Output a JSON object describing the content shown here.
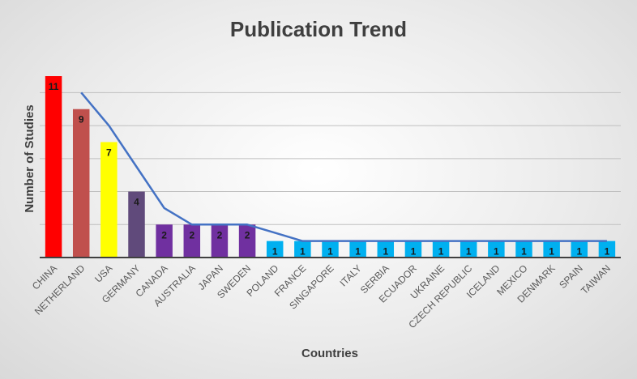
{
  "chart_data": {
    "type": "bar",
    "title": "Publication Trend",
    "xlabel": "Countries",
    "ylabel": "Number of Studies",
    "categories": [
      "CHINA",
      "NETHERLAND",
      "USA",
      "GERMANY",
      "CANADA",
      "AUSTRALIA",
      "JAPAN",
      "SWEDEN",
      "POLAND",
      "FRANCE",
      "SINGAPORE",
      "ITALY",
      "SERBIA",
      "ECUADOR",
      "UKRAINE",
      "CZECH REPUBLIC",
      "ICELAND",
      "MEXICO",
      "DENMARK",
      "SPAIN",
      "TAIWAN"
    ],
    "values": [
      11,
      9,
      7,
      4,
      2,
      2,
      2,
      2,
      1,
      1,
      1,
      1,
      1,
      1,
      1,
      1,
      1,
      1,
      1,
      1,
      1
    ],
    "bar_colors": [
      "#ff0000",
      "#c0504d",
      "#ffff00",
      "#604a7b",
      "#7030a0",
      "#7030a0",
      "#7030a0",
      "#7030a0",
      "#00b0f0",
      "#00b0f0",
      "#00b0f0",
      "#00b0f0",
      "#00b0f0",
      "#00b0f0",
      "#00b0f0",
      "#00b0f0",
      "#00b0f0",
      "#00b0f0",
      "#00b0f0",
      "#00b0f0",
      "#00b0f0"
    ],
    "trend_line": {
      "type": "moving-average",
      "period": 2,
      "values": [
        null,
        10,
        8,
        5.5,
        3,
        2,
        2,
        2,
        1.5,
        1,
        1,
        1,
        1,
        1,
        1,
        1,
        1,
        1,
        1,
        1,
        1
      ],
      "color": "#4472c4"
    },
    "ylim": [
      0,
      11
    ],
    "y_gridline_step": 2,
    "y_tick_labels_shown": false,
    "grid": true,
    "legend": "none",
    "data_labels": true
  }
}
